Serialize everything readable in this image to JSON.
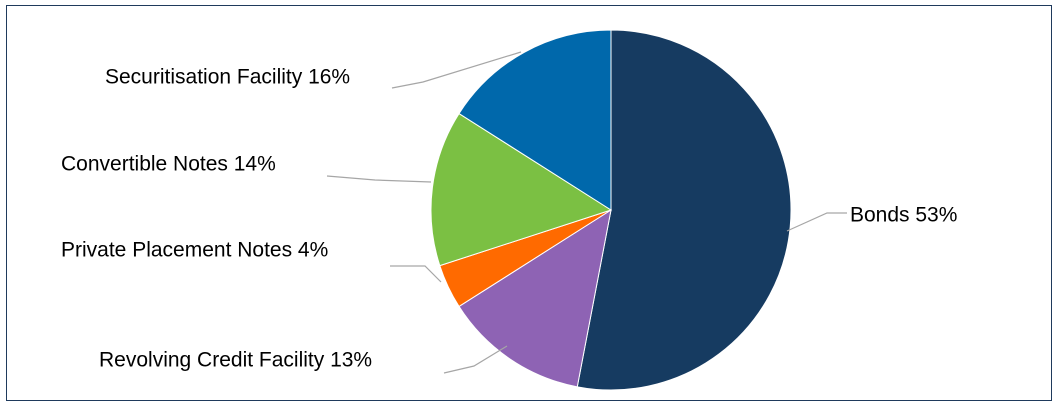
{
  "chart_data": {
    "type": "pie",
    "title": "",
    "slices": [
      {
        "label": "Bonds 53%",
        "name": "Bonds",
        "value": 53,
        "color": "#163b61"
      },
      {
        "label": "Revolving Credit Facility 13%",
        "name": "Revolving Credit Facility",
        "value": 13,
        "color": "#8e63b4"
      },
      {
        "label": "Private Placement Notes 4%",
        "name": "Private Placement Notes",
        "value": 4,
        "color": "#ff6a00"
      },
      {
        "label": "Convertible Notes 14%",
        "name": "Convertible Notes",
        "value": 14,
        "color": "#7bc043"
      },
      {
        "label": "Securitisation Facility 16%",
        "name": "Securitisation Facility",
        "value": 16,
        "color": "#0068ab"
      }
    ],
    "start_angle": "12 o'clock",
    "direction": "clockwise",
    "legend": "none"
  }
}
